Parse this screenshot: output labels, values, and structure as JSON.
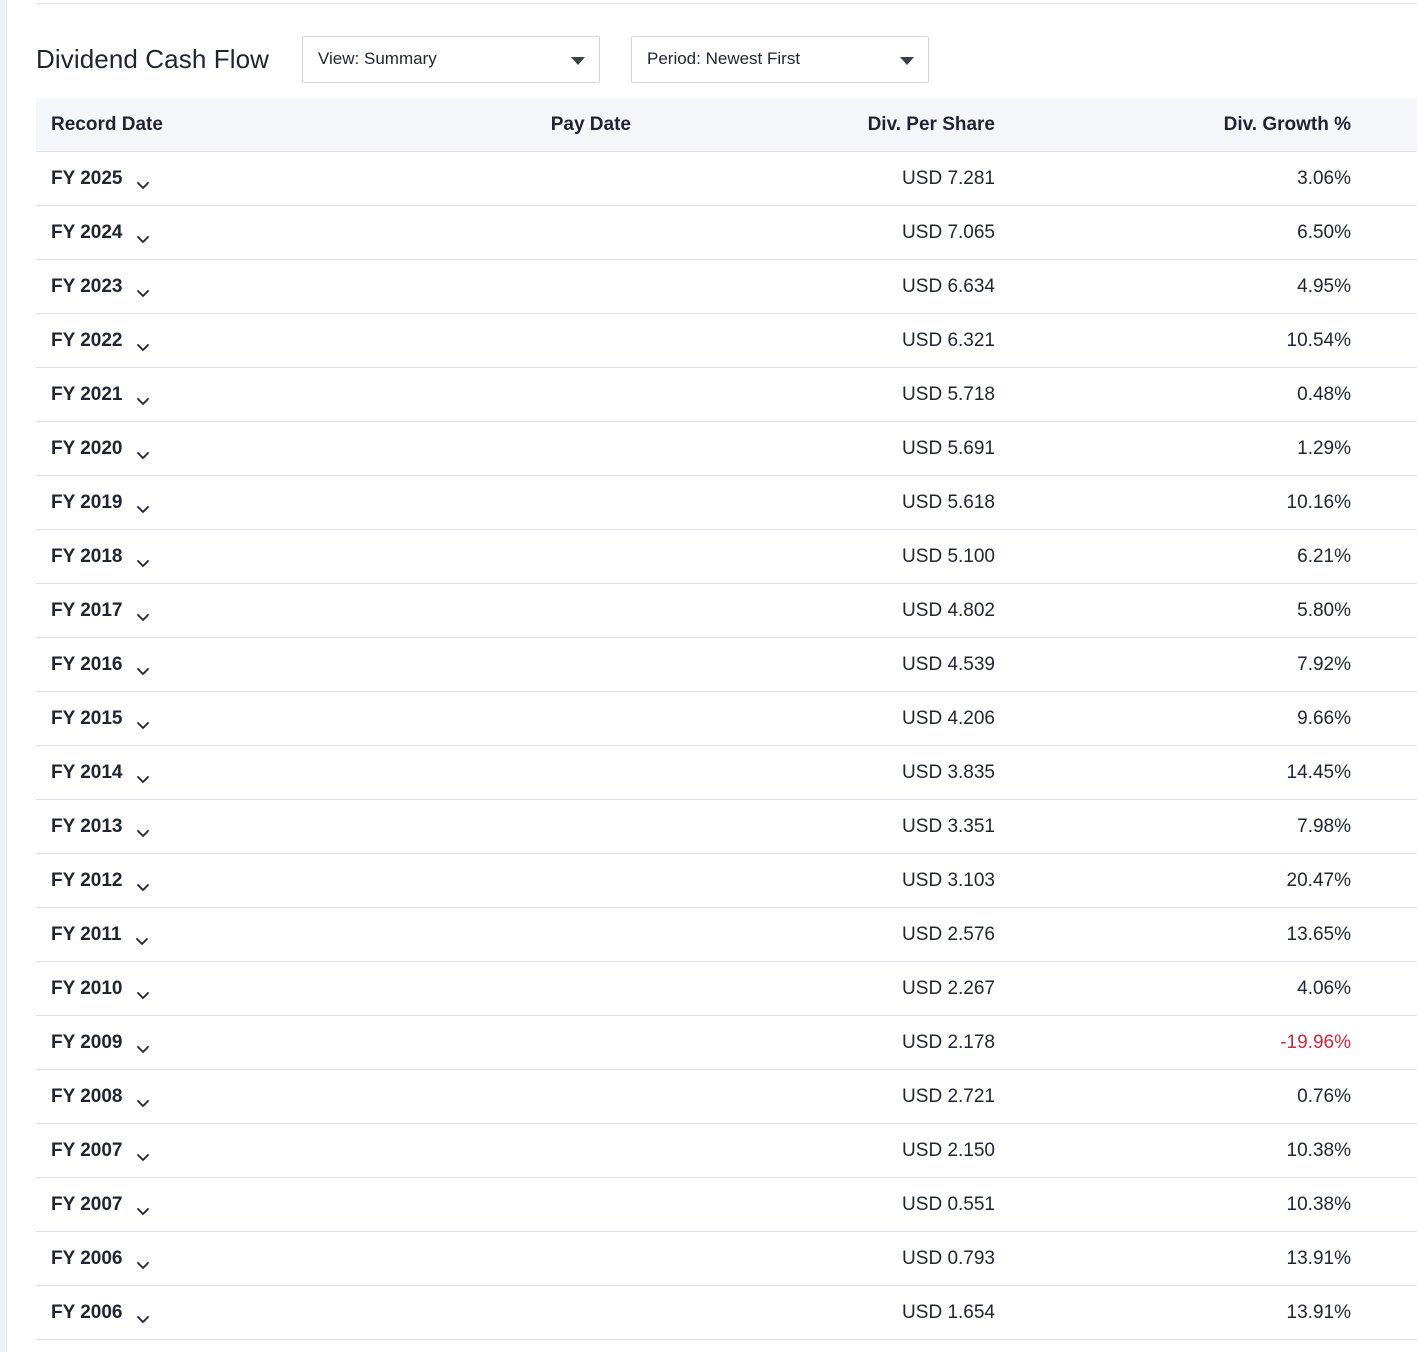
{
  "header": {
    "title": "Dividend Cash Flow",
    "view_dropdown": "View: Summary",
    "period_dropdown": "Period: Newest First"
  },
  "table": {
    "columns": [
      "Record Date",
      "Pay Date",
      "Div. Per Share",
      "Div. Growth %"
    ],
    "rows": [
      {
        "record": "FY 2025",
        "pay": "",
        "div": "USD 7.281",
        "growth": "3.06%"
      },
      {
        "record": "FY 2024",
        "pay": "",
        "div": "USD 7.065",
        "growth": "6.50%"
      },
      {
        "record": "FY 2023",
        "pay": "",
        "div": "USD 6.634",
        "growth": "4.95%"
      },
      {
        "record": "FY 2022",
        "pay": "",
        "div": "USD 6.321",
        "growth": "10.54%"
      },
      {
        "record": "FY 2021",
        "pay": "",
        "div": "USD 5.718",
        "growth": "0.48%"
      },
      {
        "record": "FY 2020",
        "pay": "",
        "div": "USD 5.691",
        "growth": "1.29%"
      },
      {
        "record": "FY 2019",
        "pay": "",
        "div": "USD 5.618",
        "growth": "10.16%"
      },
      {
        "record": "FY 2018",
        "pay": "",
        "div": "USD 5.100",
        "growth": "6.21%"
      },
      {
        "record": "FY 2017",
        "pay": "",
        "div": "USD 4.802",
        "growth": "5.80%"
      },
      {
        "record": "FY 2016",
        "pay": "",
        "div": "USD 4.539",
        "growth": "7.92%"
      },
      {
        "record": "FY 2015",
        "pay": "",
        "div": "USD 4.206",
        "growth": "9.66%"
      },
      {
        "record": "FY 2014",
        "pay": "",
        "div": "USD 3.835",
        "growth": "14.45%"
      },
      {
        "record": "FY 2013",
        "pay": "",
        "div": "USD 3.351",
        "growth": "7.98%"
      },
      {
        "record": "FY 2012",
        "pay": "",
        "div": "USD 3.103",
        "growth": "20.47%"
      },
      {
        "record": "FY 2011",
        "pay": "",
        "div": "USD 2.576",
        "growth": "13.65%"
      },
      {
        "record": "FY 2010",
        "pay": "",
        "div": "USD 2.267",
        "growth": "4.06%"
      },
      {
        "record": "FY 2009",
        "pay": "",
        "div": "USD 2.178",
        "growth": "-19.96%"
      },
      {
        "record": "FY 2008",
        "pay": "",
        "div": "USD 2.721",
        "growth": "0.76%"
      },
      {
        "record": "FY 2007",
        "pay": "",
        "div": "USD 2.150",
        "growth": "10.38%"
      },
      {
        "record": "FY 2007",
        "pay": "",
        "div": "USD 0.551",
        "growth": "10.38%"
      },
      {
        "record": "FY 2006",
        "pay": "",
        "div": "USD 0.793",
        "growth": "13.91%"
      },
      {
        "record": "FY 2006",
        "pay": "",
        "div": "USD 1.654",
        "growth": "13.91%"
      }
    ]
  },
  "colors": {
    "negative": "#d0283c",
    "header_bg": "#f5f6f9",
    "row_border": "#dfe2e8"
  },
  "icons": {
    "dropdown_caret": "caret-down-icon",
    "row_expand": "chevron-down-icon"
  }
}
